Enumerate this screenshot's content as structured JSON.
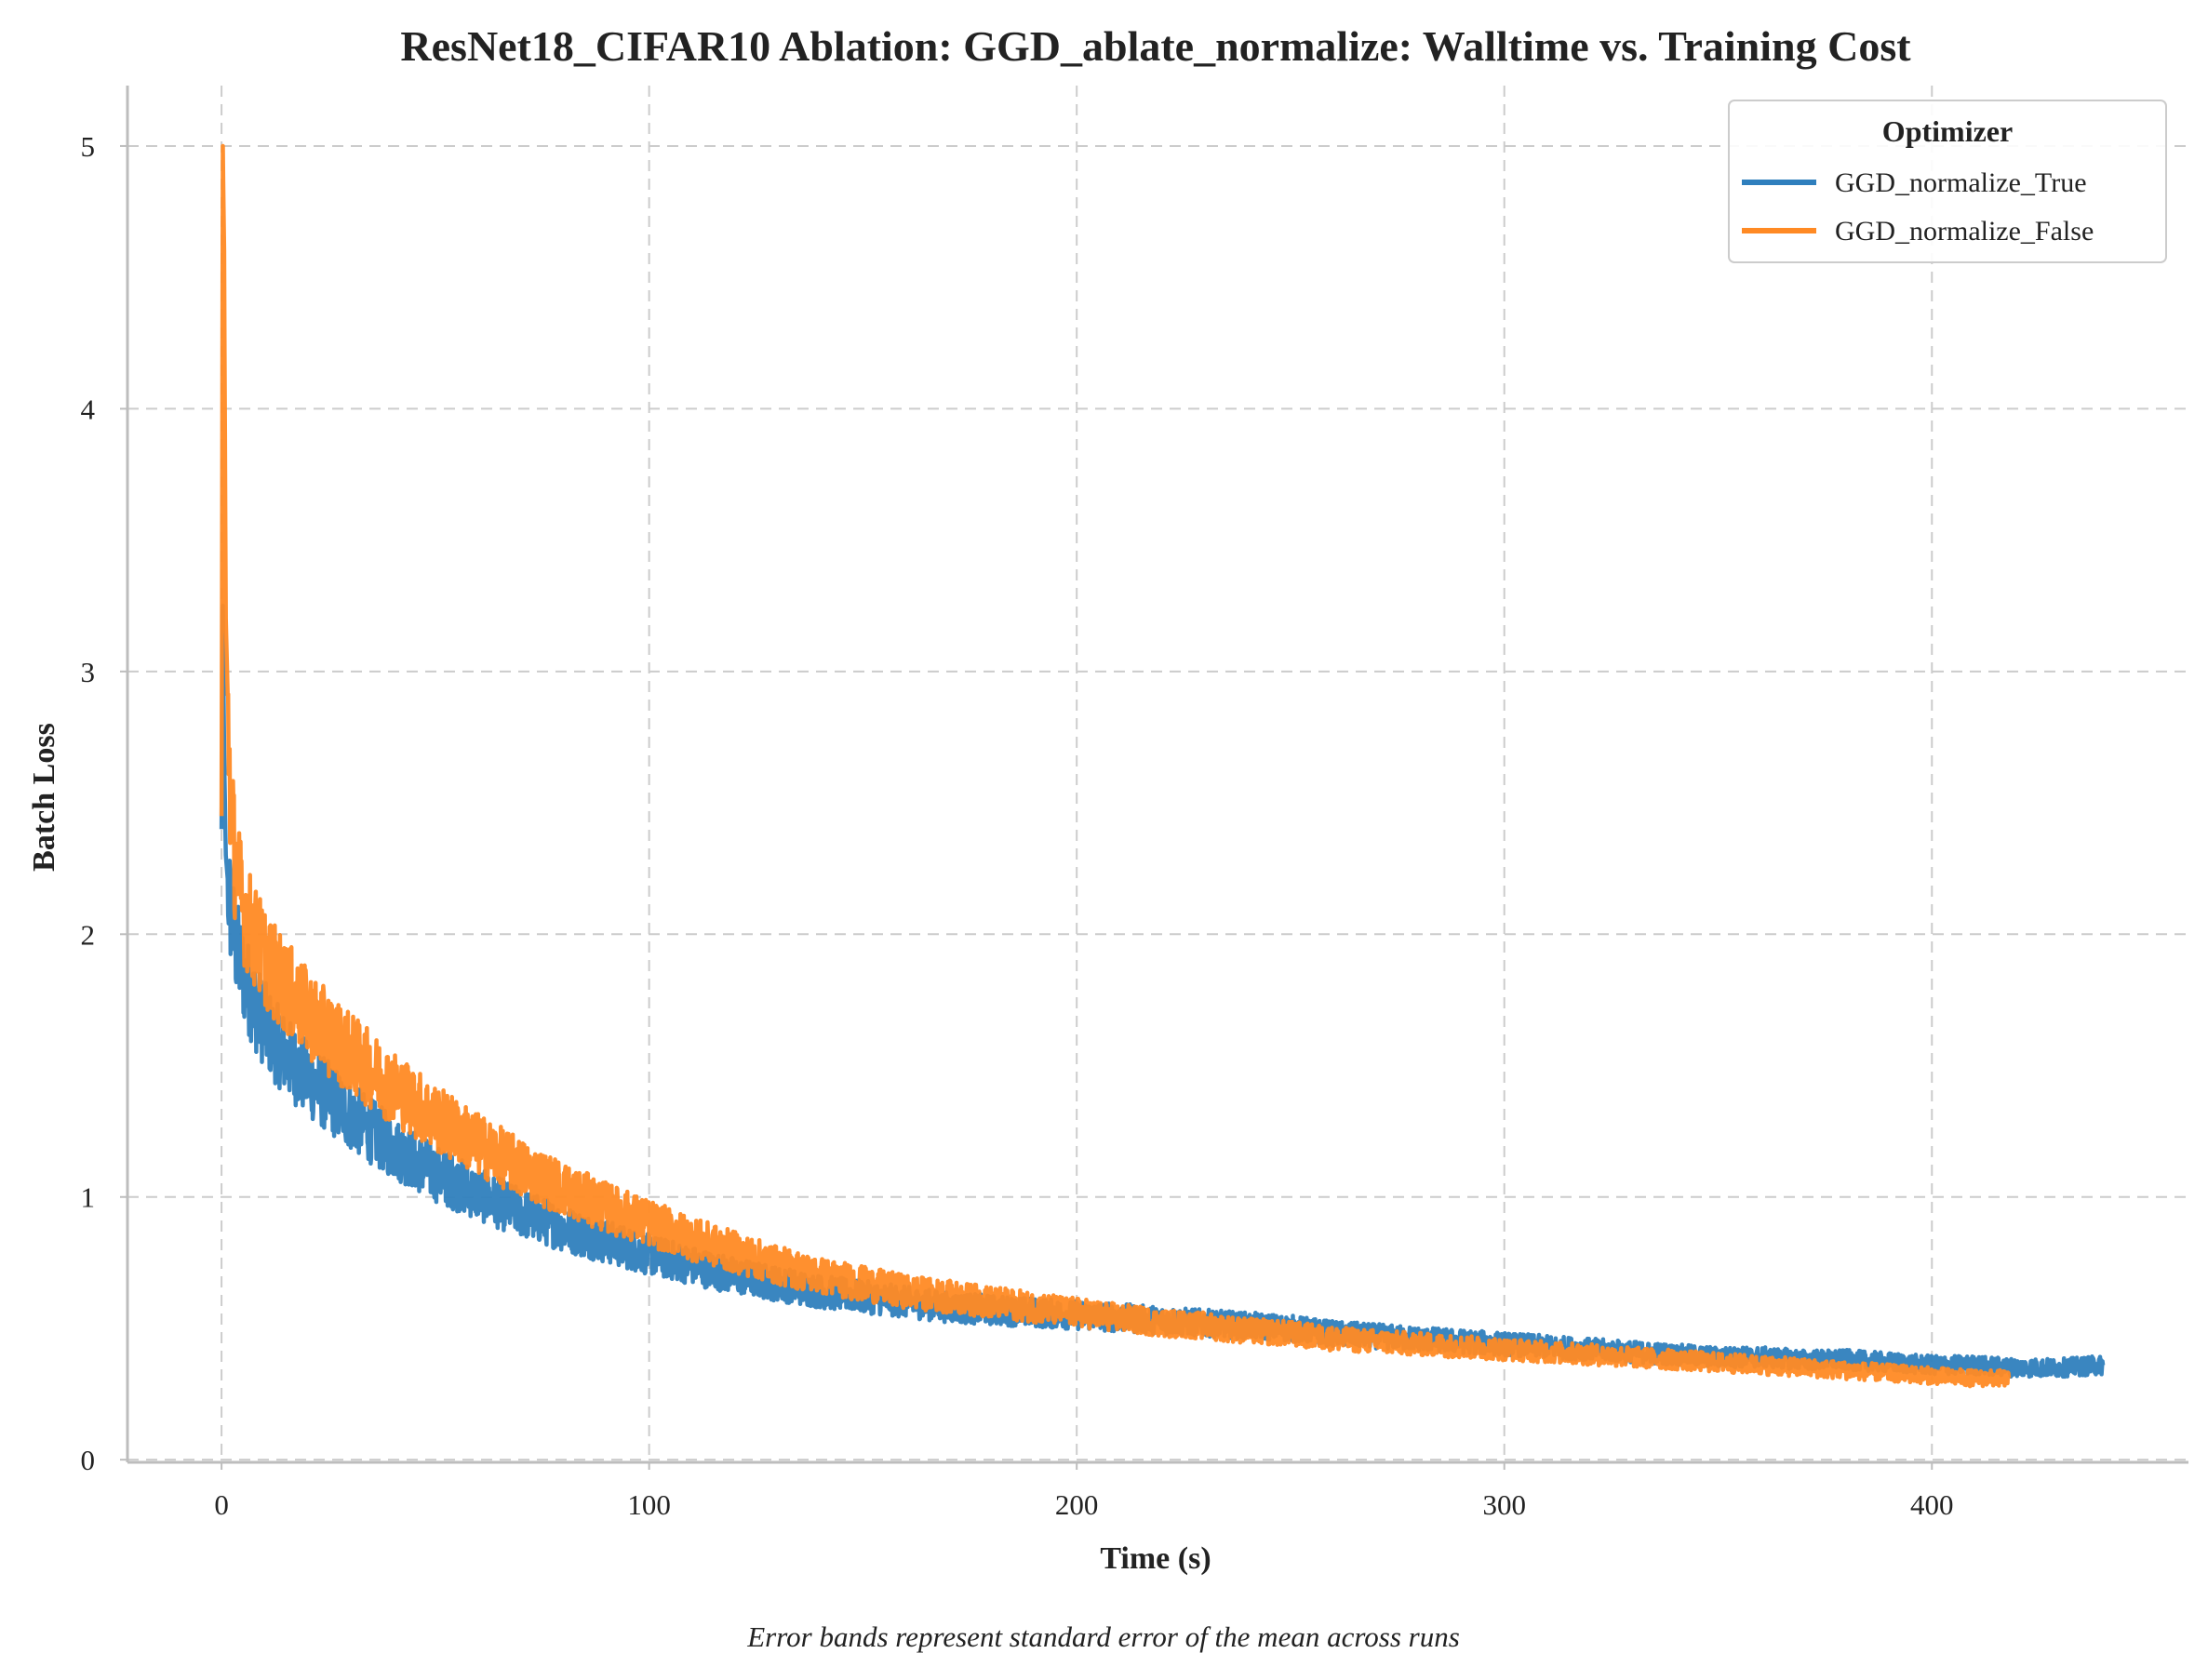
{
  "chart_data": {
    "type": "line",
    "title": "ResNet18_CIFAR10 Ablation: GGD_ablate_normalize: Walltime vs. Training Cost",
    "xlabel": "Time (s)",
    "ylabel": "Batch Loss",
    "caption": "Error bands represent standard error of the mean across runs",
    "xlim": [
      -22,
      460
    ],
    "ylim": [
      -0.01,
      5.23
    ],
    "xticks": [
      0,
      100,
      200,
      300,
      400
    ],
    "yticks": [
      0,
      1,
      2,
      3,
      4,
      5
    ],
    "grid": true,
    "legend": {
      "title": "Optimizer",
      "placement": "top-right"
    },
    "series": [
      {
        "name": "GGD_normalize_True",
        "color": "#2f7fbd",
        "x": [
          0,
          0.3,
          0.6,
          1,
          2,
          3,
          5,
          8,
          12,
          16,
          20,
          25,
          30,
          35,
          40,
          45,
          50,
          60,
          70,
          80,
          90,
          100,
          110,
          120,
          130,
          140,
          150,
          160,
          170,
          180,
          190,
          200,
          210,
          220,
          230,
          240,
          250,
          260,
          270,
          280,
          290,
          300,
          310,
          320,
          330,
          340,
          350,
          360,
          370,
          380,
          390,
          400,
          410,
          420,
          430,
          440
        ],
        "y": [
          2.4,
          3.25,
          2.7,
          2.3,
          2.1,
          1.98,
          1.85,
          1.72,
          1.6,
          1.52,
          1.45,
          1.38,
          1.31,
          1.25,
          1.19,
          1.14,
          1.09,
          1.01,
          0.94,
          0.88,
          0.83,
          0.78,
          0.74,
          0.7,
          0.67,
          0.64,
          0.62,
          0.6,
          0.58,
          0.57,
          0.56,
          0.55,
          0.54,
          0.53,
          0.52,
          0.51,
          0.5,
          0.48,
          0.47,
          0.46,
          0.45,
          0.44,
          0.43,
          0.42,
          0.41,
          0.4,
          0.39,
          0.39,
          0.38,
          0.38,
          0.37,
          0.36,
          0.36,
          0.35,
          0.35,
          0.36
        ]
      },
      {
        "name": "GGD_normalize_False",
        "color": "#ff8a24",
        "x": [
          0,
          0.3,
          0.6,
          1,
          2,
          3,
          5,
          8,
          12,
          16,
          20,
          25,
          30,
          35,
          40,
          45,
          50,
          60,
          70,
          80,
          90,
          100,
          110,
          120,
          130,
          140,
          150,
          160,
          170,
          180,
          190,
          200,
          210,
          220,
          230,
          240,
          250,
          260,
          270,
          280,
          290,
          300,
          310,
          320,
          330,
          340,
          350,
          360,
          370,
          380,
          390,
          400,
          410,
          418
        ],
        "y": [
          2.45,
          5.0,
          4.6,
          3.2,
          2.55,
          2.3,
          2.1,
          1.98,
          1.86,
          1.78,
          1.7,
          1.62,
          1.55,
          1.48,
          1.42,
          1.36,
          1.3,
          1.2,
          1.11,
          1.03,
          0.96,
          0.9,
          0.84,
          0.79,
          0.74,
          0.7,
          0.67,
          0.64,
          0.62,
          0.6,
          0.58,
          0.56,
          0.54,
          0.52,
          0.51,
          0.49,
          0.48,
          0.46,
          0.45,
          0.44,
          0.43,
          0.42,
          0.41,
          0.4,
          0.39,
          0.38,
          0.37,
          0.36,
          0.35,
          0.34,
          0.33,
          0.32,
          0.31,
          0.31
        ]
      }
    ]
  }
}
